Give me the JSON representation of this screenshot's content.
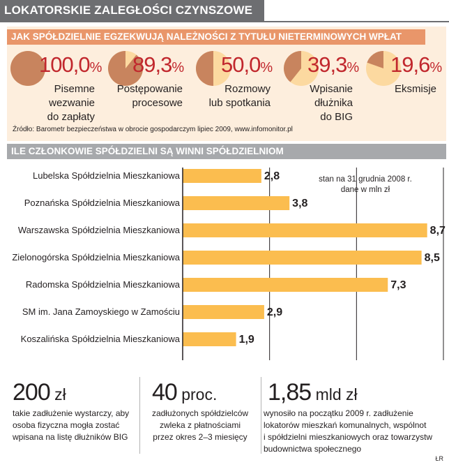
{
  "header": {
    "title": "LOKATORSKIE ZALEGŁOŚCI CZYNSZOWE"
  },
  "section1": {
    "title": "JAK SPÓŁDZIELNIE EGZEKWUJĄ NALEŻNOŚCI Z TYTUŁU NIETERMINOWYCH WPŁAT",
    "source": "Źródło: Barometr bezpieczeństwa w obrocie gospodarczym lipiec 2009, www.infomonitor.pl"
  },
  "pies": [
    {
      "value": 100.0,
      "value_label": "100,0",
      "unit": "%",
      "lines": [
        "Pisemne",
        "wezwanie",
        "do zapłaty"
      ]
    },
    {
      "value": 89.3,
      "value_label": "89,3",
      "unit": "%",
      "lines": [
        "Postępowanie",
        "procesowe"
      ]
    },
    {
      "value": 50.0,
      "value_label": "50,0",
      "unit": "%",
      "lines": [
        "Rozmowy",
        "lub spotkania"
      ]
    },
    {
      "value": 39.3,
      "value_label": "39,3",
      "unit": "%",
      "lines": [
        "Wpisanie",
        "dłużnika",
        "do BIG"
      ]
    },
    {
      "value": 19.6,
      "value_label": "19,6",
      "unit": "%",
      "lines": [
        "Eksmisje"
      ]
    }
  ],
  "colors": {
    "pie_fill": "#c8845e",
    "pie_empty": "#fcd9a0",
    "bar": "#fbbd4f",
    "gray_header": "#a7a9ac",
    "orange_header": "#e9966a",
    "pie_number": "#c1272d"
  },
  "chart_data": {
    "type": "bar",
    "title": "ILE CZŁONKOWIE SPÓŁDZIELNI SĄ WINNI SPÓŁDZIELNIOM",
    "note_lines": [
      "stan na 31 grudnia 2008 r.",
      "dane w mln zł"
    ],
    "categories": [
      "Lubelska Spółdzielnia Mieszkaniowa",
      "Poznańska Spółdzielnia Mieszkaniowa",
      "Warszawska Spółdzielnia Mieszkaniowa",
      "Zielonogórska Spółdzielnia Mieszkaniowa",
      "Radomska Spółdzielnia Mieszkaniowa",
      "SM im. Jana Zamoyskiego w Zamościu",
      "Koszalińska Spółdzielnia Mieszkaniowa"
    ],
    "values": [
      2.8,
      3.8,
      8.7,
      8.5,
      7.3,
      2.9,
      1.9
    ],
    "value_labels": [
      "2,8",
      "3,8",
      "8,7",
      "8,5",
      "7,3",
      "2,9",
      "1,9"
    ],
    "xlim": [
      0,
      9
    ],
    "grid": true
  },
  "stats": [
    {
      "number": "200",
      "unit": "zł",
      "lines": [
        "takie zadłużenie wystarczy, aby",
        "osoba fizyczna mogła zostać",
        "wpisana na listę dłużników BIG"
      ]
    },
    {
      "number": "40",
      "unit": "proc.",
      "lines": [
        "zadłużonych spółdzielców",
        "zwleka z płatnościami",
        "przez okres 2–3 miesięcy"
      ]
    },
    {
      "number": "1,85",
      "unit": "mld zł",
      "lines": [
        "wynosiło na początku 2009 r. zadłużenie",
        "lokatorów mieszkań komunalnych, wspólnot",
        "i spółdzielni mieszkaniowych oraz towarzystw",
        "budownictwa społecznego"
      ]
    }
  ],
  "credit": "ŁR"
}
